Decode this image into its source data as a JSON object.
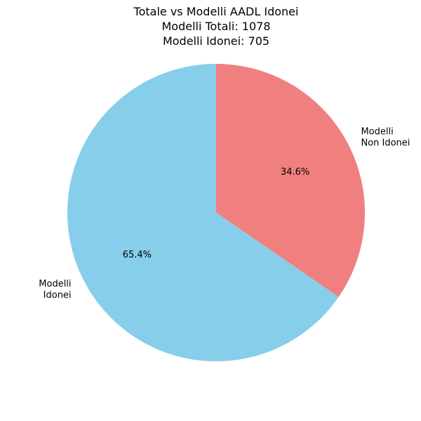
{
  "chart_data": {
    "type": "pie",
    "title": [
      "Totale vs Modelli AADL Idonei",
      "Modelli Totali: 1078",
      "Modelli Idonei: 705"
    ],
    "slices": [
      {
        "label_lines": [
          "Modelli",
          "Non Idonei"
        ],
        "value": 373,
        "percent_label": "34.6%",
        "color": "#F08080"
      },
      {
        "label_lines": [
          "Modelli",
          "Idonei"
        ],
        "value": 705,
        "percent_label": "65.4%",
        "color": "#87CEEB"
      }
    ],
    "start_angle_deg": 90,
    "direction": "clockwise"
  }
}
